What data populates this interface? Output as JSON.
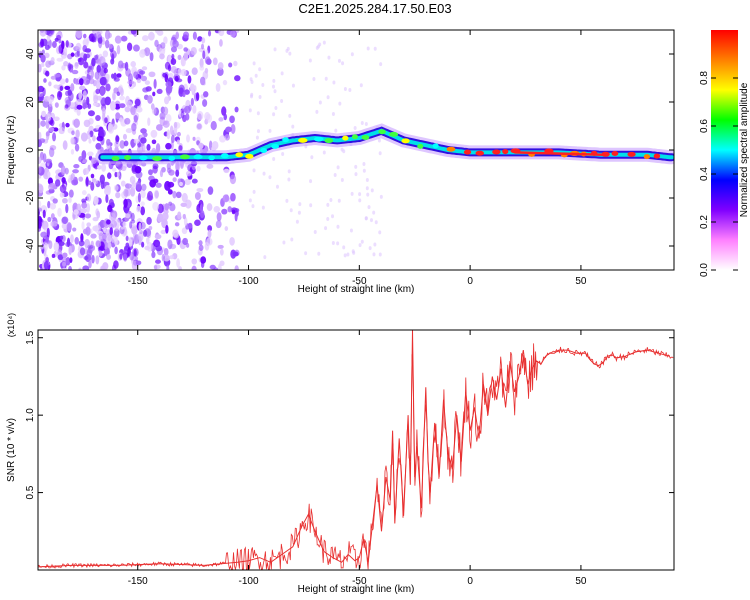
{
  "title": "C2E1.2025.284.17.50.E03",
  "chart_data": [
    {
      "type": "heatmap",
      "title": "C2E1.2025.284.17.50.E03",
      "xlabel": "Height of straight line (km)",
      "ylabel": "Frequency (Hz)",
      "xlim": [
        -195,
        92
      ],
      "ylim": [
        -50,
        50
      ],
      "xticks": [
        -150,
        -100,
        -50,
        0,
        50
      ],
      "yticks": [
        -40,
        -20,
        0,
        20,
        40
      ],
      "ridge": {
        "x": [
          -165,
          -150,
          -130,
          -110,
          -100,
          -90,
          -80,
          -70,
          -60,
          -50,
          -40,
          -30,
          -20,
          -10,
          0,
          10,
          20,
          40,
          60,
          80,
          90
        ],
        "y": [
          -3,
          -3,
          -3,
          -3,
          -2,
          2,
          4,
          5,
          4,
          5,
          8,
          4,
          2,
          0,
          -1,
          -1,
          -1,
          -1,
          -2,
          -2,
          -3
        ]
      },
      "colorbar": {
        "label": "Normalized spectral amplitude",
        "range": [
          0,
          1
        ],
        "ticks": [
          "0.0",
          "0.2",
          "0.4",
          "0.6",
          "0.8"
        ],
        "colors": [
          "#ffffff",
          "#ff80ff",
          "#8000ff",
          "#0000ff",
          "#00ffff",
          "#00ff00",
          "#ffff00",
          "#ff8000",
          "#ff0000"
        ]
      }
    },
    {
      "type": "line",
      "xlabel": "Height of straight line (km)",
      "ylabel": "SNR (10 * v/v)",
      "y_scale_label": "(x10⁴)",
      "xlim": [
        -195,
        92
      ],
      "ylim": [
        0,
        1.55
      ],
      "xticks": [
        -150,
        -100,
        -50,
        0,
        50
      ],
      "yticks": [
        0.5,
        1.0,
        1.5
      ],
      "ytick_labels": [
        "0.5",
        "1.0",
        "1.5"
      ],
      "line_color": "#e83030",
      "x": [
        -195,
        -180,
        -160,
        -140,
        -120,
        -105,
        -100,
        -95,
        -90,
        -85,
        -80,
        -76,
        -73,
        -70,
        -66,
        -62,
        -58,
        -55,
        -52,
        -50,
        -48,
        -46,
        -44,
        -42,
        -40,
        -38,
        -36,
        -35,
        -34,
        -32,
        -30,
        -28,
        -27,
        -26,
        -25,
        -24,
        -22,
        -20,
        -19,
        -18,
        -16,
        -14,
        -12,
        -10,
        -8,
        -6,
        -4,
        -2,
        0,
        2,
        4,
        6,
        8,
        10,
        12,
        14,
        16,
        18,
        20,
        22,
        24,
        26,
        28,
        30,
        32,
        34,
        36,
        38,
        40,
        44,
        48,
        52,
        54,
        56,
        58,
        60,
        62,
        64,
        66,
        70,
        75,
        80,
        85,
        90
      ],
      "y": [
        0.02,
        0.03,
        0.03,
        0.04,
        0.03,
        0.05,
        0.06,
        0.08,
        0.05,
        0.1,
        0.15,
        0.28,
        0.36,
        0.25,
        0.12,
        0.08,
        0.05,
        0.1,
        0.06,
        0.08,
        0.2,
        0.05,
        0.3,
        0.55,
        0.25,
        0.6,
        0.45,
        0.9,
        0.3,
        0.85,
        0.35,
        1.0,
        0.55,
        1.55,
        0.6,
        0.8,
        0.4,
        1.18,
        0.7,
        0.5,
        0.95,
        0.6,
        1.1,
        0.75,
        0.65,
        1.0,
        0.7,
        1.15,
        0.9,
        1.05,
        0.85,
        1.2,
        1.0,
        1.25,
        1.1,
        1.3,
        1.05,
        1.35,
        1.15,
        1.25,
        1.42,
        1.2,
        1.3,
        1.35,
        1.33,
        1.38,
        1.4,
        1.4,
        1.42,
        1.42,
        1.4,
        1.4,
        1.36,
        1.33,
        1.32,
        1.34,
        1.38,
        1.39,
        1.37,
        1.38,
        1.41,
        1.42,
        1.4,
        1.38
      ]
    }
  ]
}
